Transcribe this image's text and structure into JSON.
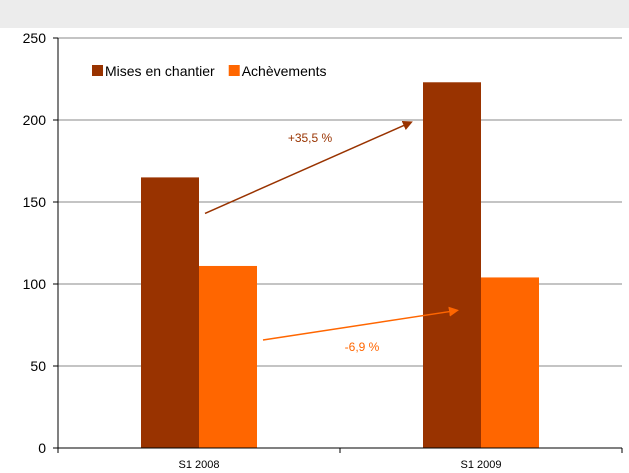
{
  "chart_data": {
    "type": "bar",
    "categories": [
      "S1 2008",
      "S1 2009"
    ],
    "series": [
      {
        "name": "Mises en chantier",
        "values": [
          165,
          223
        ],
        "color": "#993300"
      },
      {
        "name": "Achèvements",
        "values": [
          111,
          104
        ],
        "color": "#ff6600"
      }
    ],
    "ylim": [
      0,
      250
    ],
    "yticks": [
      0,
      50,
      100,
      150,
      200,
      250
    ],
    "grid": true,
    "legend": "top-left",
    "annotations": [
      {
        "text": "+35,5 %",
        "series": "Mises en chantier",
        "color": "#993300"
      },
      {
        "text": "-6,9 %",
        "series": "Achèvements",
        "color": "#ff6600"
      }
    ]
  }
}
